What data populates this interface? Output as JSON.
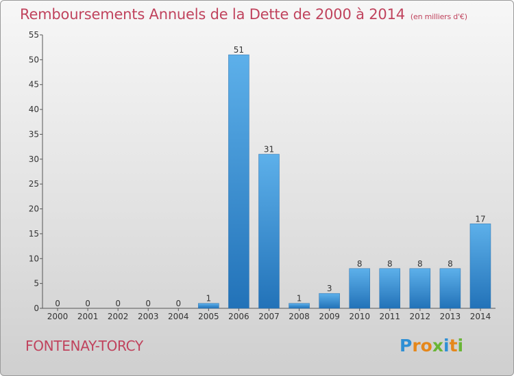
{
  "chart_data": {
    "type": "bar",
    "title": "Remboursements Annuels de la Dette de 2000 à 2014",
    "subtitle": "(en milliers d'€)",
    "categories": [
      "2000",
      "2001",
      "2002",
      "2003",
      "2004",
      "2005",
      "2006",
      "2007",
      "2008",
      "2009",
      "2010",
      "2011",
      "2012",
      "2013",
      "2014"
    ],
    "values": [
      0,
      0,
      0,
      0,
      0,
      1,
      51,
      31,
      1,
      3,
      8,
      8,
      8,
      8,
      17
    ],
    "ylim": [
      0,
      55
    ],
    "yticks": [
      0,
      5,
      10,
      15,
      20,
      25,
      30,
      35,
      40,
      45,
      50,
      55
    ],
    "grid": false,
    "bar_color": "#3a8fd6"
  },
  "footer": {
    "city": "FONTENAY-TORCY",
    "logo": {
      "letters": [
        "P",
        "r",
        "o",
        "x",
        "i",
        "t",
        "i"
      ],
      "colors": [
        "#2f8fd4",
        "#e5871b",
        "#e5871b",
        "#69b536",
        "#2f8fd4",
        "#e5871b",
        "#69b536"
      ]
    }
  }
}
